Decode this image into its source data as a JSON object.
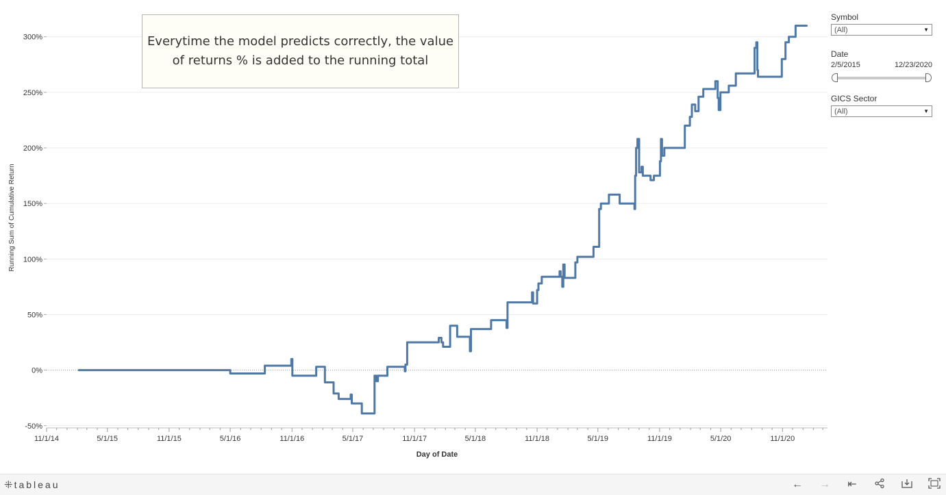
{
  "annotation": {
    "text": "Everytime the model predicts correctly, the value of returns % is added to the running total"
  },
  "filters": {
    "symbol": {
      "label": "Symbol",
      "value": "(All)"
    },
    "date": {
      "label": "Date",
      "start": "2/5/2015",
      "end": "12/23/2020",
      "range_fraction": [
        0,
        1
      ]
    },
    "sector": {
      "label": "GICS Sector",
      "value": "(All)"
    }
  },
  "footer": {
    "logo_text": "tableau"
  },
  "colors": {
    "line": "#4e79a7",
    "gridline": "#ececec",
    "zero_line": "#9a9a9a",
    "annotation_bg": "#fffef6"
  },
  "icons": [
    "tableau-logo-icon",
    "undo-icon",
    "redo-icon",
    "revert-icon",
    "share-icon",
    "download-icon",
    "fullscreen-icon"
  ],
  "chart_data": {
    "type": "line",
    "title": "",
    "xlabel": "Day of Date",
    "ylabel": "Running Sum of Cumulative Return",
    "xlim": [
      "2014-11-01",
      "2021-03-15"
    ],
    "ylim": [
      -52,
      322
    ],
    "x_ticks": [
      {
        "date": "2014-11-01",
        "label": "11/1/14"
      },
      {
        "date": "2015-05-01",
        "label": "5/1/15"
      },
      {
        "date": "2015-11-01",
        "label": "11/1/15"
      },
      {
        "date": "2016-05-01",
        "label": "5/1/16"
      },
      {
        "date": "2016-11-01",
        "label": "11/1/16"
      },
      {
        "date": "2017-05-01",
        "label": "5/1/17"
      },
      {
        "date": "2017-11-01",
        "label": "11/1/17"
      },
      {
        "date": "2018-05-01",
        "label": "5/1/18"
      },
      {
        "date": "2018-11-01",
        "label": "11/1/18"
      },
      {
        "date": "2019-05-01",
        "label": "5/1/19"
      },
      {
        "date": "2019-11-01",
        "label": "11/1/19"
      },
      {
        "date": "2020-05-01",
        "label": "5/1/20"
      },
      {
        "date": "2020-11-01",
        "label": "11/1/20"
      }
    ],
    "y_ticks": [
      {
        "value": -50,
        "label": "-50%"
      },
      {
        "value": 0,
        "label": "0%"
      },
      {
        "value": 50,
        "label": "50%"
      },
      {
        "value": 100,
        "label": "100%"
      },
      {
        "value": 150,
        "label": "150%"
      },
      {
        "value": 200,
        "label": "200%"
      },
      {
        "value": 250,
        "label": "250%"
      },
      {
        "value": 300,
        "label": "300%"
      }
    ],
    "grid": true,
    "series": [
      {
        "points": [
          [
            "2015-02-05",
            0
          ],
          [
            "2016-04-30",
            0
          ],
          [
            "2016-05-01",
            -3
          ],
          [
            "2016-08-10",
            -3
          ],
          [
            "2016-08-12",
            4
          ],
          [
            "2016-10-28",
            4
          ],
          [
            "2016-10-30",
            10
          ],
          [
            "2016-11-02",
            -5
          ],
          [
            "2017-01-10",
            -5
          ],
          [
            "2017-01-12",
            3
          ],
          [
            "2017-02-05",
            3
          ],
          [
            "2017-02-07",
            -11
          ],
          [
            "2017-03-01",
            -11
          ],
          [
            "2017-03-05",
            -21
          ],
          [
            "2017-03-20",
            -26
          ],
          [
            "2017-04-20",
            -26
          ],
          [
            "2017-04-25",
            -22
          ],
          [
            "2017-04-28",
            -30
          ],
          [
            "2017-05-25",
            -30
          ],
          [
            "2017-05-28",
            -39
          ],
          [
            "2017-07-01",
            -39
          ],
          [
            "2017-07-05",
            -5
          ],
          [
            "2017-07-10",
            -10
          ],
          [
            "2017-07-15",
            -5
          ],
          [
            "2017-08-10",
            -5
          ],
          [
            "2017-08-12",
            3
          ],
          [
            "2017-10-01",
            3
          ],
          [
            "2017-10-03",
            -1
          ],
          [
            "2017-10-05",
            5
          ],
          [
            "2017-10-10",
            25
          ],
          [
            "2018-01-10",
            25
          ],
          [
            "2018-01-12",
            29
          ],
          [
            "2018-01-20",
            25
          ],
          [
            "2018-01-25",
            21
          ],
          [
            "2018-02-10",
            21
          ],
          [
            "2018-02-15",
            40
          ],
          [
            "2018-03-05",
            40
          ],
          [
            "2018-03-08",
            30
          ],
          [
            "2018-04-10",
            30
          ],
          [
            "2018-04-15",
            17
          ],
          [
            "2018-04-18",
            37
          ],
          [
            "2018-06-15",
            37
          ],
          [
            "2018-06-17",
            45
          ],
          [
            "2018-07-30",
            45
          ],
          [
            "2018-08-02",
            38
          ],
          [
            "2018-08-05",
            61
          ],
          [
            "2018-10-15",
            61
          ],
          [
            "2018-10-17",
            70
          ],
          [
            "2018-10-20",
            60
          ],
          [
            "2018-10-25",
            60
          ],
          [
            "2018-11-01",
            72
          ],
          [
            "2018-11-05",
            78
          ],
          [
            "2018-11-15",
            84
          ],
          [
            "2019-01-05",
            84
          ],
          [
            "2019-01-07",
            89
          ],
          [
            "2019-01-10",
            84
          ],
          [
            "2019-01-15",
            75
          ],
          [
            "2019-01-18",
            95
          ],
          [
            "2019-01-22",
            83
          ],
          [
            "2019-02-20",
            83
          ],
          [
            "2019-02-23",
            97
          ],
          [
            "2019-03-01",
            102
          ],
          [
            "2019-04-15",
            102
          ],
          [
            "2019-04-18",
            111
          ],
          [
            "2019-05-05",
            145
          ],
          [
            "2019-05-10",
            150
          ],
          [
            "2019-06-01",
            150
          ],
          [
            "2019-06-03",
            158
          ],
          [
            "2019-06-25",
            158
          ],
          [
            "2019-07-05",
            150
          ],
          [
            "2019-08-15",
            150
          ],
          [
            "2019-08-18",
            145
          ],
          [
            "2019-08-20",
            175
          ],
          [
            "2019-08-23",
            200
          ],
          [
            "2019-08-27",
            208
          ],
          [
            "2019-09-01",
            178
          ],
          [
            "2019-09-08",
            183
          ],
          [
            "2019-09-12",
            175
          ],
          [
            "2019-09-30",
            175
          ],
          [
            "2019-10-05",
            171
          ],
          [
            "2019-10-15",
            175
          ],
          [
            "2019-10-30",
            175
          ],
          [
            "2019-11-02",
            188
          ],
          [
            "2019-11-05",
            208
          ],
          [
            "2019-11-08",
            193
          ],
          [
            "2019-11-15",
            200
          ],
          [
            "2020-01-10",
            200
          ],
          [
            "2020-01-15",
            220
          ],
          [
            "2020-01-30",
            228
          ],
          [
            "2020-02-05",
            239
          ],
          [
            "2020-02-15",
            233
          ],
          [
            "2020-02-25",
            246
          ],
          [
            "2020-03-10",
            253
          ],
          [
            "2020-04-10",
            253
          ],
          [
            "2020-04-15",
            260
          ],
          [
            "2020-04-22",
            245
          ],
          [
            "2020-04-25",
            234
          ],
          [
            "2020-04-30",
            250
          ],
          [
            "2020-05-25",
            256
          ],
          [
            "2020-06-15",
            267
          ],
          [
            "2020-07-30",
            267
          ],
          [
            "2020-08-10",
            290
          ],
          [
            "2020-08-15",
            295
          ],
          [
            "2020-08-18",
            270
          ],
          [
            "2020-08-20",
            264
          ],
          [
            "2020-10-25",
            264
          ],
          [
            "2020-10-30",
            280
          ],
          [
            "2020-11-10",
            295
          ],
          [
            "2020-11-20",
            300
          ],
          [
            "2020-12-10",
            310
          ],
          [
            "2021-01-12",
            310
          ]
        ]
      }
    ]
  }
}
